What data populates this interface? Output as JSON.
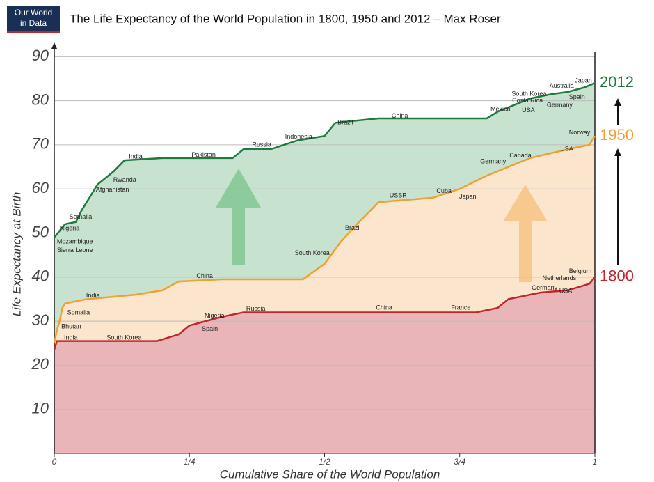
{
  "logo_lines": [
    "Our World",
    "in Data"
  ],
  "chart_data": {
    "type": "line",
    "title": "The Life Expectancy of the World Population in 1800, 1950 and 2012 – Max Roser",
    "xlabel": "Cumulative Share of the World Population",
    "ylabel": "Life Expectancy at Birth",
    "xlim": [
      0,
      1
    ],
    "ylim": [
      0,
      91
    ],
    "xticks": [
      0,
      {
        "value": 0.25,
        "label": "1/4"
      },
      {
        "value": 0.5,
        "label": "1/2"
      },
      {
        "value": 0.75,
        "label": "3/4"
      },
      1
    ],
    "yticks": [
      10,
      20,
      30,
      40,
      50,
      60,
      70,
      80,
      90
    ],
    "grid": true,
    "series": [
      {
        "name": "2012",
        "color": "#1f7a3e",
        "fill": "#c8e2d0",
        "x": [
          0,
          0.01,
          0.02,
          0.04,
          0.05,
          0.06,
          0.07,
          0.08,
          0.09,
          0.1,
          0.11,
          0.13,
          0.2,
          0.33,
          0.35,
          0.4,
          0.45,
          0.5,
          0.52,
          0.6,
          0.8,
          0.82,
          0.85,
          0.88,
          0.92,
          0.95,
          0.98,
          1
        ],
        "values": [
          49,
          50.5,
          52,
          52.5,
          55,
          57,
          59,
          61,
          62,
          63,
          64,
          66.5,
          67,
          67,
          69,
          69,
          71,
          72,
          75,
          76,
          76,
          77.5,
          79,
          80.5,
          81.5,
          82,
          83,
          84
        ]
      },
      {
        "name": "1950",
        "color": "#f0a030",
        "fill": "#fbe5cc",
        "x": [
          0,
          0.005,
          0.01,
          0.015,
          0.02,
          0.06,
          0.15,
          0.2,
          0.23,
          0.31,
          0.46,
          0.5,
          0.53,
          0.56,
          0.6,
          0.7,
          0.75,
          0.8,
          0.84,
          0.88,
          0.95,
          0.99,
          1
        ],
        "values": [
          25,
          28,
          30,
          33,
          34,
          35,
          36,
          37,
          39,
          39.5,
          39.5,
          43,
          48,
          52,
          57,
          58,
          60,
          63,
          65,
          67,
          69,
          70,
          72
        ]
      },
      {
        "name": "1800",
        "color": "#c0272d",
        "fill": "#e9b5b9",
        "x": [
          0,
          0.005,
          0.19,
          0.23,
          0.25,
          0.28,
          0.31,
          0.35,
          0.78,
          0.82,
          0.84,
          0.9,
          0.95,
          0.99,
          1
        ],
        "values": [
          23.5,
          25.5,
          25.5,
          27,
          29,
          30,
          31,
          32,
          32,
          33,
          35,
          36.5,
          37,
          38.5,
          40
        ]
      }
    ],
    "annotations": [
      {
        "text": "India",
        "x": 0.138,
        "y": 67.3
      },
      {
        "text": "Pakistan",
        "x": 0.254,
        "y": 67.7
      },
      {
        "text": "Russia",
        "x": 0.366,
        "y": 70
      },
      {
        "text": "Indonesia",
        "x": 0.427,
        "y": 71.8
      },
      {
        "text": "Brazil",
        "x": 0.524,
        "y": 75
      },
      {
        "text": "China",
        "x": 0.624,
        "y": 76.5
      },
      {
        "text": "Mexico",
        "x": 0.807,
        "y": 78
      },
      {
        "text": "USA",
        "x": 0.865,
        "y": 77.8
      },
      {
        "text": "Costa Rica",
        "x": 0.847,
        "y": 80
      },
      {
        "text": "South Korea",
        "x": 0.846,
        "y": 81.5
      },
      {
        "text": "Germany",
        "x": 0.911,
        "y": 79
      },
      {
        "text": "Spain",
        "x": 0.952,
        "y": 80.8
      },
      {
        "text": "Australia",
        "x": 0.916,
        "y": 83.3
      },
      {
        "text": "Japan",
        "x": 0.963,
        "y": 84.5
      },
      {
        "text": "Rwanda",
        "x": 0.109,
        "y": 62
      },
      {
        "text": "Afghanistan",
        "x": 0.077,
        "y": 59.8
      },
      {
        "text": "Somalia",
        "x": 0.028,
        "y": 53.6
      },
      {
        "text": "Nigeria",
        "x": 0.01,
        "y": 51
      },
      {
        "text": "Mozambique",
        "x": 0.005,
        "y": 48
      },
      {
        "text": "Sierra Leone",
        "x": 0.005,
        "y": 46
      },
      {
        "text": "Norway",
        "x": 0.952,
        "y": 72.7
      },
      {
        "text": "USA",
        "x": 0.936,
        "y": 69
      },
      {
        "text": "Canada",
        "x": 0.842,
        "y": 67.5
      },
      {
        "text": "Germany",
        "x": 0.788,
        "y": 66.2
      },
      {
        "text": "Japan",
        "x": 0.749,
        "y": 58.2
      },
      {
        "text": "Cuba",
        "x": 0.707,
        "y": 59.5
      },
      {
        "text": "USSR",
        "x": 0.62,
        "y": 58.4
      },
      {
        "text": "Brazil",
        "x": 0.538,
        "y": 51.1
      },
      {
        "text": "South Korea",
        "x": 0.445,
        "y": 45.4
      },
      {
        "text": "China",
        "x": 0.263,
        "y": 40.2
      },
      {
        "text": "India",
        "x": 0.059,
        "y": 35.8
      },
      {
        "text": "Somalia",
        "x": 0.024,
        "y": 31.9
      },
      {
        "text": "Bhutan",
        "x": 0.013,
        "y": 28.7
      },
      {
        "text": "India",
        "x": 0.018,
        "y": 26.2
      },
      {
        "text": "South Korea",
        "x": 0.097,
        "y": 26.2
      },
      {
        "text": "Nigeria",
        "x": 0.278,
        "y": 31.2
      },
      {
        "text": "Spain",
        "x": 0.273,
        "y": 28.2
      },
      {
        "text": "Russia",
        "x": 0.355,
        "y": 32.8
      },
      {
        "text": "China",
        "x": 0.595,
        "y": 33
      },
      {
        "text": "France",
        "x": 0.734,
        "y": 33
      },
      {
        "text": "Belgium",
        "x": 0.952,
        "y": 41.3
      },
      {
        "text": "Netherlands",
        "x": 0.903,
        "y": 39.7
      },
      {
        "text": "Germany",
        "x": 0.883,
        "y": 37.5
      },
      {
        "text": "USA",
        "x": 0.934,
        "y": 36.8
      }
    ]
  }
}
